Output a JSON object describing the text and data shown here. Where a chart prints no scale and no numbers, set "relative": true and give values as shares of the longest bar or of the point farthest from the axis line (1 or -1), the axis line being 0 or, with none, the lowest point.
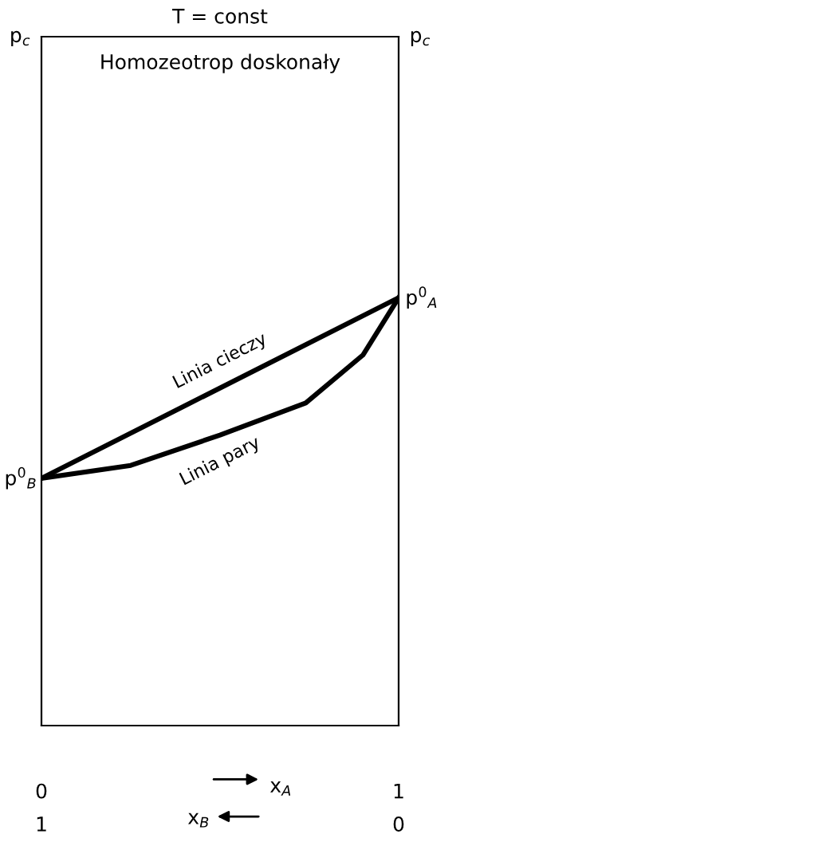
{
  "chart_data": {
    "type": "line",
    "title": "T = const",
    "subtitle": "Homozeotrop doskonały",
    "relative": true,
    "xlim": [
      0,
      1
    ],
    "xticks": [
      0,
      1
    ],
    "xlabel": "x$_{A}$",
    "x2lim": [
      1,
      0
    ],
    "x2ticks": [
      1,
      0
    ],
    "x2label": "x$_{B}$",
    "series": [
      {
        "name": "Linia cieczy",
        "color": "#000000",
        "x": [
          0,
          1
        ],
        "values": [
          0.578,
          1
        ]
      },
      {
        "name": "Linia pary",
        "color": "#000000",
        "x": [
          0,
          0.25,
          0.5,
          0.74,
          0.9,
          1
        ],
        "values": [
          0.578,
          0.608,
          0.679,
          0.754,
          0.866,
          1
        ]
      }
    ],
    "annotations": [
      "p$_{c}$",
      "p$_{c}$",
      {
        "text": "p$^{0}$$_{B}$",
        "x": 0,
        "y": 0.578
      },
      {
        "text": "p$^{0}$$_{A}$",
        "x": 1,
        "y": 1
      }
    ],
    "grid": false,
    "legend": false,
    "marker": "none",
    "line_style": "solid"
  }
}
